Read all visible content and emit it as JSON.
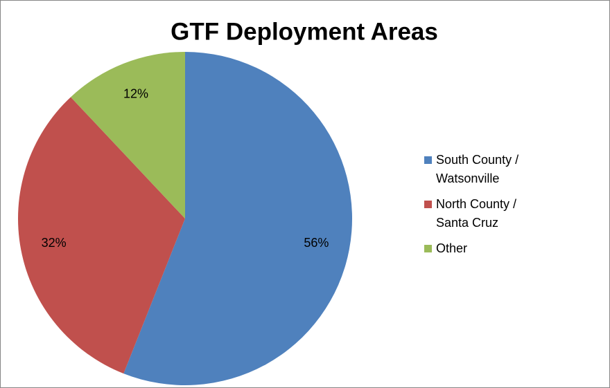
{
  "chart_data": {
    "type": "pie",
    "title": "GTF Deployment Areas",
    "categories": [
      "South County / Watsonville",
      "North County / Santa Cruz",
      "Other"
    ],
    "values": [
      56,
      32,
      12
    ],
    "value_labels": [
      "56%",
      "32%",
      "12%"
    ],
    "colors": [
      "#4f81bd",
      "#c0504d",
      "#9bbb59"
    ],
    "legend": "right"
  }
}
